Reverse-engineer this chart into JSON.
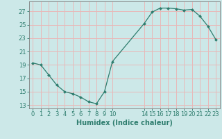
{
  "x": [
    0,
    1,
    2,
    3,
    4,
    5,
    6,
    7,
    8,
    9,
    10,
    14,
    15,
    16,
    17,
    18,
    19,
    20,
    21,
    22,
    23
  ],
  "y": [
    19.3,
    19.0,
    17.5,
    16.0,
    15.0,
    14.7,
    14.2,
    13.5,
    13.2,
    15.0,
    19.5,
    25.2,
    26.9,
    27.5,
    27.5,
    27.4,
    27.2,
    27.3,
    26.3,
    24.8,
    22.8
  ],
  "line_color": "#2e7d6e",
  "marker_color": "#2e7d6e",
  "bg_color": "#cce8e8",
  "grid_color": "#e8b8b8",
  "xlabel": "Humidex (Indice chaleur)",
  "xlim": [
    -0.5,
    23.5
  ],
  "ylim": [
    12.5,
    28.5
  ],
  "yticks": [
    13,
    15,
    17,
    19,
    21,
    23,
    25,
    27
  ],
  "xticks": [
    0,
    1,
    2,
    3,
    4,
    5,
    6,
    7,
    8,
    9,
    10,
    14,
    15,
    16,
    17,
    18,
    19,
    20,
    21,
    22,
    23
  ],
  "tick_label_fontsize": 6.0,
  "xlabel_fontsize": 7.0
}
